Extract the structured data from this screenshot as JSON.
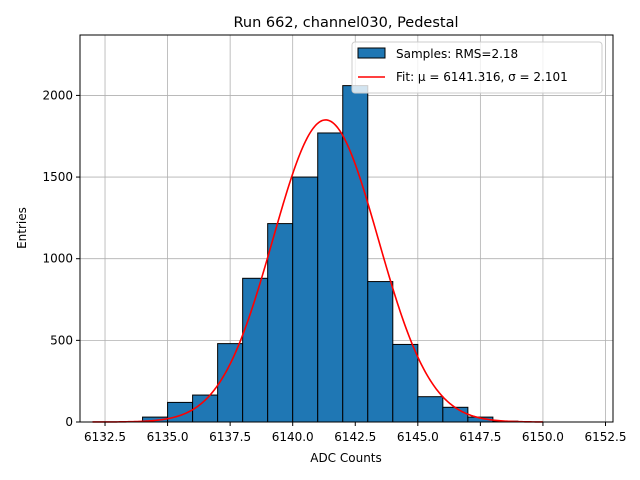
{
  "chart_data": {
    "type": "bar",
    "title": "Run 662, channel030, Pedestal",
    "xlabel": "ADC Counts",
    "ylabel": "Entries",
    "xlim": [
      6131.5,
      6152.8
    ],
    "ylim": [
      0,
      2370
    ],
    "grid": true,
    "legend_position": "top-right",
    "x_ticks": [
      6132.5,
      6135.0,
      6137.5,
      6140.0,
      6142.5,
      6145.0,
      6147.5,
      6150.0,
      6152.5
    ],
    "x_tick_labels": [
      "6132.5",
      "6135.0",
      "6137.5",
      "6140.0",
      "6142.5",
      "6145.0",
      "6147.5",
      "6150.0",
      "6152.5"
    ],
    "y_ticks": [
      0,
      500,
      1000,
      1500,
      2000
    ],
    "y_tick_labels": [
      "0",
      "500",
      "1000",
      "1500",
      "2000"
    ],
    "histogram": {
      "name": "Samples: RMS=2.18",
      "color": "#1f77b4",
      "edge_color": "#000000",
      "bin_edges": [
        6134,
        6135,
        6136,
        6137,
        6138,
        6139,
        6140,
        6141,
        6142,
        6143,
        6144,
        6145,
        6146,
        6147,
        6148,
        6149
      ],
      "counts": [
        30,
        120,
        165,
        480,
        880,
        1215,
        1500,
        1770,
        2060,
        860,
        475,
        155,
        90,
        30,
        5
      ]
    },
    "fit": {
      "name": "Fit: μ = 6141.316, σ = 2.101",
      "color": "#ff0000",
      "mu": 6141.316,
      "sigma": 2.101,
      "amplitude": 1850,
      "x_range": [
        6132.0,
        6150.0
      ]
    }
  }
}
